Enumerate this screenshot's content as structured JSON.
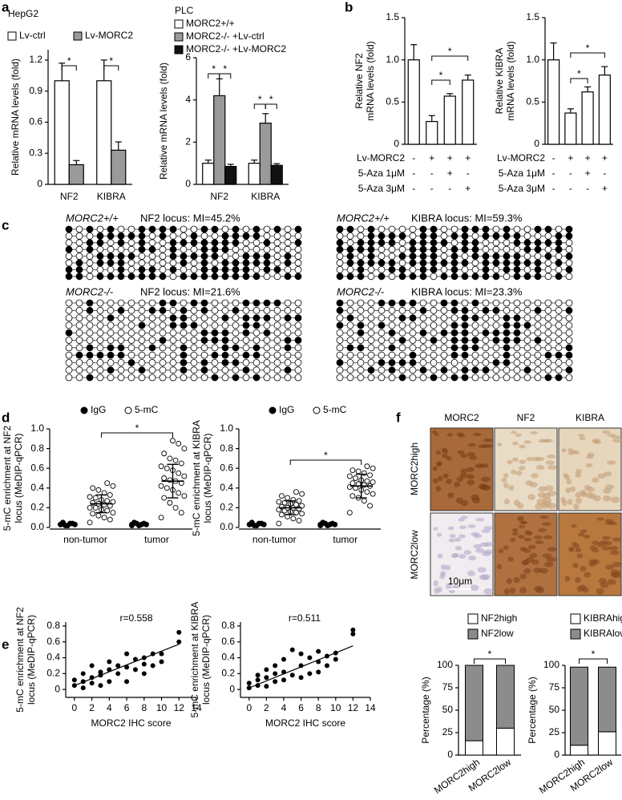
{
  "panels": [
    "a",
    "b",
    "c",
    "d",
    "e",
    "f"
  ],
  "methylation": {
    "blocks": [
      {
        "genotype": "MORC2+/+",
        "label": "NF2 locus: MI=45.2%"
      },
      {
        "genotype": "MORC2+/+",
        "label": "KIBRA locus: MI=59.3%"
      },
      {
        "genotype": "MORC2-/-",
        "label": "NF2 locus: MI=21.6%"
      },
      {
        "genotype": "MORC2-/-",
        "label": "KIBRA locus: MI=23.3%"
      }
    ]
  },
  "ihc": {
    "columns": [
      "MORC2",
      "NF2",
      "KIBRA"
    ],
    "rows": [
      "MORC2high",
      "MORC2low"
    ],
    "scale_bar": "10μm"
  },
  "chart_data": [
    {
      "type": "bar",
      "title": "HepG2",
      "categories": [
        "NF2",
        "KIBRA"
      ],
      "series": [
        {
          "name": "Lv-ctrl",
          "color": "#ffffff",
          "values": [
            1.0,
            1.0
          ],
          "errors": [
            0.17,
            0.2
          ]
        },
        {
          "name": "Lv-MORC2",
          "color": "#9a9a9a",
          "values": [
            0.19,
            0.33
          ],
          "errors": [
            0.04,
            0.08
          ]
        }
      ],
      "ylabel": [
        "Relative mRNA levels (fold)"
      ],
      "ylim": [
        0,
        1.3
      ],
      "yticks": [
        0,
        0.3,
        0.6,
        0.9,
        1.2
      ],
      "annotations": [
        "*",
        "*"
      ]
    },
    {
      "type": "bar",
      "title": "PLC",
      "categories": [
        "NF2",
        "KIBRA"
      ],
      "series": [
        {
          "name": "MORC2+/+",
          "color": "#ffffff",
          "values": [
            1.0,
            1.0
          ],
          "errors": [
            0.15,
            0.15
          ]
        },
        {
          "name": "MORC2-/- +Lv-ctrl",
          "color": "#9a9a9a",
          "values": [
            4.2,
            2.9
          ],
          "errors": [
            0.8,
            0.45
          ]
        },
        {
          "name": "MORC2-/- +Lv-MORC2",
          "color": "#111111",
          "values": [
            0.85,
            0.9
          ],
          "errors": [
            0.1,
            0.08
          ]
        }
      ],
      "ylabel": [
        "Relative mRNA levels (fold)"
      ],
      "ylim": [
        0,
        6
      ],
      "yticks": [
        0,
        2,
        4,
        6
      ],
      "annotations": [
        "*",
        "*",
        "*",
        "*"
      ]
    },
    {
      "type": "bar",
      "values": [
        1.0,
        0.27,
        0.57,
        0.76
      ],
      "errors": [
        0.18,
        0.07,
        0.03,
        0.06
      ],
      "color": "#ffffff",
      "ylabel": [
        "Relative NF2",
        "mRNA levels (fold)"
      ],
      "ylim": [
        0,
        1.5
      ],
      "yticks": [
        0,
        0.5,
        {
          "value": 1,
          "label": "1.0"
        },
        1.5
      ],
      "conditions": [
        {
          "label": "Lv-MORC2",
          "signs": [
            "-",
            "+",
            "+",
            "+"
          ]
        },
        {
          "label": "5-Aza 1μM",
          "signs": [
            "-",
            "-",
            "+",
            "-"
          ]
        },
        {
          "label": "5-Aza 3μM",
          "signs": [
            "-",
            "-",
            "-",
            "+"
          ]
        }
      ],
      "annotations": [
        "*",
        "*"
      ]
    },
    {
      "type": "bar",
      "values": [
        1.0,
        0.37,
        0.62,
        0.82
      ],
      "errors": [
        0.2,
        0.05,
        0.06,
        0.1
      ],
      "color": "#ffffff",
      "ylabel": [
        "Relative KIBRA",
        "mRNA levels (fold)"
      ],
      "ylim": [
        0,
        1.5
      ],
      "yticks": [
        0,
        0.5,
        {
          "value": 1,
          "label": "1.0"
        },
        1.5
      ],
      "conditions": [
        {
          "label": "Lv-MORC2",
          "signs": [
            "-",
            "+",
            "+",
            "+"
          ]
        },
        {
          "label": "5-Aza 1μM",
          "signs": [
            "-",
            "-",
            "+",
            "-"
          ]
        },
        {
          "label": "5-Aza 3μM",
          "signs": [
            "-",
            "-",
            "-",
            "+"
          ]
        }
      ],
      "annotations": [
        "*",
        "*"
      ]
    },
    {
      "type": "dot",
      "categories": [
        "non-tumor",
        "tumor"
      ],
      "series": [
        {
          "name": "IgG",
          "color": "#000000",
          "values": [
            [
              0.03,
              0.04,
              0.02,
              0.05,
              0.03,
              0.04,
              0.02,
              0.03
            ],
            [
              0.03,
              0.04,
              0.02,
              0.05,
              0.03,
              0.03,
              0.04,
              0.02
            ]
          ]
        },
        {
          "name": "5-mC",
          "color": "#ffffff",
          "values": [
            [
              0.05,
              0.08,
              0.1,
              0.12,
              0.14,
              0.15,
              0.17,
              0.18,
              0.2,
              0.2,
              0.22,
              0.23,
              0.24,
              0.25,
              0.26,
              0.27,
              0.28,
              0.3,
              0.31,
              0.33,
              0.35,
              0.38,
              0.4,
              0.42,
              0.45
            ],
            [
              0.1,
              0.15,
              0.2,
              0.25,
              0.3,
              0.32,
              0.35,
              0.38,
              0.4,
              0.42,
              0.45,
              0.47,
              0.48,
              0.5,
              0.52,
              0.55,
              0.58,
              0.6,
              0.62,
              0.65,
              0.68,
              0.7,
              0.75,
              0.8,
              0.85,
              0.88
            ]
          ],
          "means": [
            0.24,
            0.47
          ],
          "sd": [
            0.09,
            0.17
          ]
        }
      ],
      "ylabel": [
        "5-mC enrichment at NF2",
        "locus (MeDIP-qPCR)"
      ],
      "ylim": [
        0,
        1
      ],
      "yticks": [
        {
          "value": 0,
          "label": "0.0"
        },
        0.2,
        0.4,
        0.6,
        0.8,
        {
          "value": 1,
          "label": "1.0"
        }
      ],
      "annotations": [
        "*"
      ]
    },
    {
      "type": "dot",
      "categories": [
        "non-tumor",
        "tumor"
      ],
      "series": [
        {
          "name": "IgG",
          "color": "#000000",
          "values": [
            [
              0.03,
              0.04,
              0.02,
              0.05,
              0.03,
              0.04,
              0.02,
              0.03
            ],
            [
              0.03,
              0.04,
              0.02,
              0.05,
              0.03,
              0.03,
              0.04,
              0.02
            ]
          ]
        },
        {
          "name": "5-mC",
          "color": "#ffffff",
          "values": [
            [
              0.04,
              0.07,
              0.09,
              0.11,
              0.13,
              0.14,
              0.15,
              0.16,
              0.17,
              0.18,
              0.19,
              0.2,
              0.2,
              0.21,
              0.22,
              0.23,
              0.24,
              0.25,
              0.26,
              0.27,
              0.28,
              0.3,
              0.32,
              0.34,
              0.36
            ],
            [
              0.15,
              0.22,
              0.27,
              0.3,
              0.32,
              0.34,
              0.36,
              0.38,
              0.4,
              0.41,
              0.42,
              0.43,
              0.44,
              0.45,
              0.46,
              0.47,
              0.48,
              0.5,
              0.52,
              0.53,
              0.55,
              0.57,
              0.58,
              0.6,
              0.62
            ]
          ],
          "means": [
            0.2,
            0.42
          ],
          "sd": [
            0.07,
            0.12
          ]
        }
      ],
      "ylabel": [
        "5-mC enrichment at KIBRA",
        "locus (MeDIP-qPCR)"
      ],
      "ylim": [
        0,
        1
      ],
      "yticks": [
        {
          "value": 0,
          "label": "0.0"
        },
        0.2,
        0.4,
        0.6,
        0.8,
        {
          "value": 1,
          "label": "1.0"
        }
      ],
      "annotations": [
        "*"
      ]
    },
    {
      "type": "scatter",
      "annotations": [
        "r=0.558"
      ],
      "x": [
        0,
        0,
        1,
        1,
        1,
        2,
        2,
        2,
        3,
        3,
        3,
        4,
        4,
        4,
        5,
        5,
        6,
        6,
        6,
        7,
        7,
        8,
        8,
        8,
        9,
        9,
        10,
        10,
        12,
        12
      ],
      "y": [
        0.05,
        0.12,
        0.02,
        0.1,
        0.2,
        0.08,
        0.15,
        0.3,
        0.05,
        0.18,
        0.22,
        0.1,
        0.25,
        0.35,
        0.2,
        0.3,
        0.1,
        0.28,
        0.45,
        0.25,
        0.38,
        0.2,
        0.32,
        0.4,
        0.3,
        0.45,
        0.35,
        0.45,
        0.6,
        0.72
      ],
      "trendline": {
        "x": [
          0,
          12
        ],
        "y": [
          0.05,
          0.57
        ]
      },
      "xlim": [
        -1,
        14
      ],
      "xticks": [
        0,
        2,
        4,
        6,
        8,
        10,
        12,
        14
      ],
      "ylim": [
        -0.1,
        0.85
      ],
      "yticks": [
        0,
        0.2,
        0.4,
        0.6,
        0.8
      ],
      "xlabel": "MORC2 IHC score",
      "ylabel": [
        "5-mC enrichment at NF2",
        "locus (MeDIP-qPCR)"
      ]
    },
    {
      "type": "scatter",
      "annotations": [
        "r=0.511"
      ],
      "x": [
        0,
        0,
        1,
        1,
        1,
        2,
        2,
        2,
        3,
        3,
        3,
        4,
        4,
        4,
        5,
        5,
        6,
        6,
        6,
        7,
        7,
        8,
        8,
        8,
        9,
        9,
        10,
        10,
        12,
        12
      ],
      "y": [
        0.02,
        0.08,
        0.05,
        0.12,
        0.18,
        0.04,
        0.15,
        0.25,
        0.1,
        0.2,
        0.3,
        0.12,
        0.22,
        0.38,
        0.18,
        0.5,
        0.15,
        0.3,
        0.45,
        0.2,
        0.4,
        0.22,
        0.35,
        0.48,
        0.3,
        0.42,
        0.38,
        0.46,
        0.7,
        0.75
      ],
      "trendline": {
        "x": [
          0,
          12
        ],
        "y": [
          0.02,
          0.55
        ]
      },
      "xlim": [
        -1,
        14
      ],
      "xticks": [
        0,
        2,
        4,
        6,
        8,
        10,
        12,
        14
      ],
      "ylim": [
        -0.1,
        0.85
      ],
      "yticks": [
        0,
        0.2,
        0.4,
        0.6,
        0.8
      ],
      "xlabel": "MORC2 IHC score",
      "ylabel": [
        "5-mC enrichment at KIBRA",
        "locus (MeDIP-qPCR)"
      ]
    },
    {
      "type": "stacked_bar",
      "categories": [
        "MORC2high",
        "MORC2low"
      ],
      "series": [
        {
          "name": "NF2high",
          "color": "#ffffff",
          "values": [
            16,
            30
          ]
        },
        {
          "name": "NF2low",
          "color": "#8c8c8c",
          "values": [
            84,
            70
          ]
        }
      ],
      "ylabel": [
        "Percentage (%)"
      ],
      "ylim": [
        0,
        100
      ],
      "yticks": [
        0,
        25,
        50,
        75,
        100
      ],
      "annotations": [
        "*"
      ]
    },
    {
      "type": "stacked_bar",
      "categories": [
        "MORC2high",
        "MORC2low"
      ],
      "series": [
        {
          "name": "KIBRAhigh",
          "color": "#ffffff",
          "values": [
            11,
            26
          ]
        },
        {
          "name": "KIBRAlow",
          "color": "#8c8c8c",
          "values": [
            87,
            72
          ]
        }
      ],
      "ylabel": [
        "Percentage (%)"
      ],
      "ylim": [
        0,
        100
      ],
      "yticks": [
        0,
        25,
        50,
        75,
        100
      ],
      "annotations": [
        "*"
      ]
    }
  ]
}
